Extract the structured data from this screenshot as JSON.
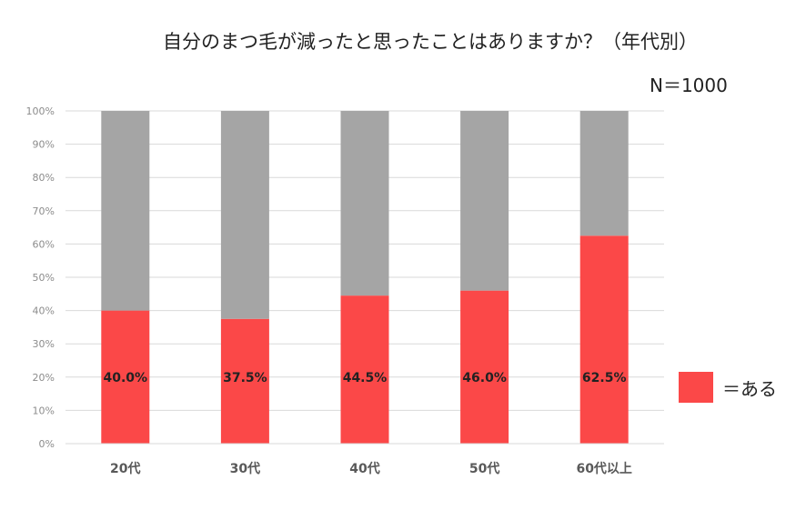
{
  "title": "自分のまつ毛が減ったと思ったことはありますか？（年代別）",
  "sample_size": "N＝1000",
  "legend": {
    "label": "＝ある",
    "color": "#fb4848"
  },
  "colors": {
    "yes": "#fb4848",
    "remainder": "#a5a5a5",
    "gridline": "#d9d9d9"
  },
  "chart_data": {
    "type": "bar",
    "stacked": true,
    "categories": [
      "20代",
      "30代",
      "40代",
      "50代",
      "60代以上"
    ],
    "series": [
      {
        "name": "＝ある",
        "values": [
          40.0,
          37.5,
          44.5,
          46.0,
          62.5
        ]
      },
      {
        "values": [
          60.0,
          62.5,
          55.5,
          54.0,
          37.5
        ]
      }
    ],
    "data_labels": [
      "40.0%",
      "37.5%",
      "44.5%",
      "46.0%",
      "62.5%"
    ],
    "ylim": [
      0,
      100
    ],
    "yticks": [
      "0%",
      "10%",
      "20%",
      "30%",
      "40%",
      "50%",
      "60%",
      "70%",
      "80%",
      "90%",
      "100%"
    ],
    "grid": true,
    "legend_position": "right"
  }
}
